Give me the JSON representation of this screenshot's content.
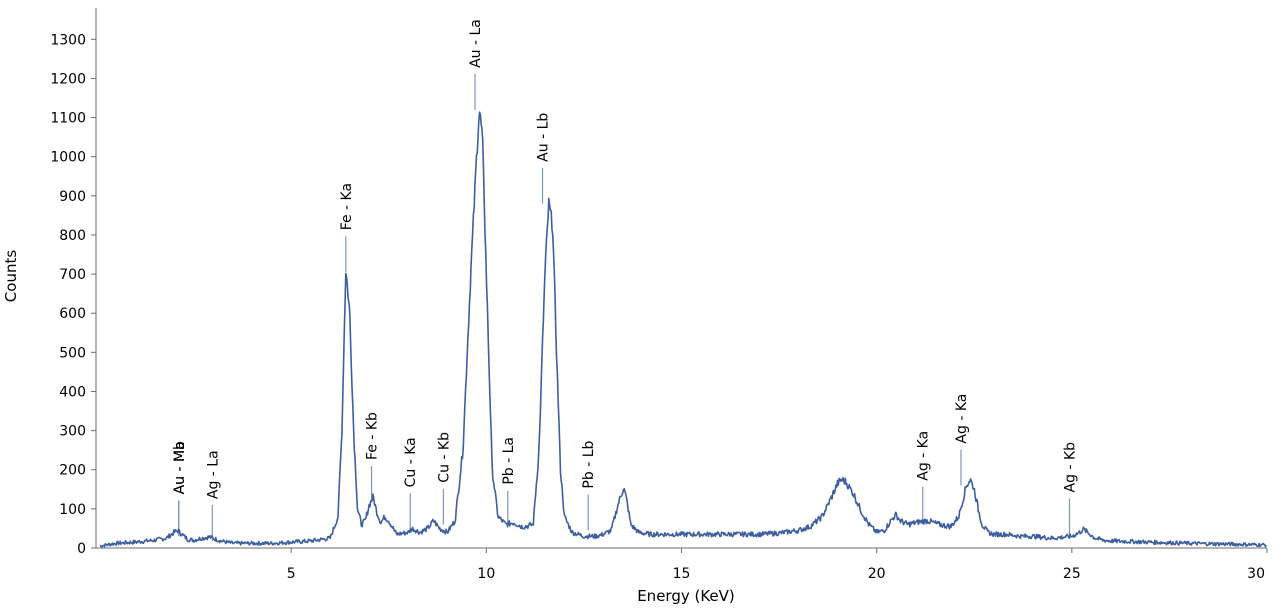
{
  "chart_data": {
    "type": "line",
    "xlabel": "Energy (KeV)",
    "ylabel": "Counts",
    "xlim": [
      0,
      30
    ],
    "ylim": [
      0,
      1380
    ],
    "xticks": [
      5,
      10,
      15,
      20,
      25,
      30
    ],
    "yticks": [
      0,
      100,
      200,
      300,
      400,
      500,
      600,
      700,
      800,
      900,
      1000,
      1100,
      1200,
      1300
    ],
    "grid": false,
    "line_color": "#3d5f9f",
    "marker_color": "#7f93bd",
    "series": [
      {
        "x": [
          0.1,
          0.5,
          1.0,
          1.5,
          1.8,
          2.0,
          2.1,
          2.2,
          2.35,
          2.5,
          2.7,
          2.9,
          3.0,
          3.2,
          3.5,
          4.0,
          4.5,
          5.0,
          5.5,
          6.0,
          6.2,
          6.3,
          6.4,
          6.5,
          6.6,
          6.7,
          6.8,
          6.9,
          7.0,
          7.1,
          7.2,
          7.3,
          7.4,
          7.5,
          7.7,
          8.0,
          8.1,
          8.3,
          8.5,
          8.65,
          8.8,
          9.0,
          9.2,
          9.4,
          9.6,
          9.75,
          9.82,
          9.9,
          10.0,
          10.15,
          10.3,
          10.5,
          10.7,
          10.9,
          11.0,
          11.2,
          11.35,
          11.5,
          11.6,
          11.7,
          11.8,
          11.9,
          12.0,
          12.2,
          12.5,
          12.8,
          13.0,
          13.2,
          13.4,
          13.52,
          13.6,
          13.7,
          13.9,
          14.2,
          15.0,
          16.0,
          17.0,
          17.5,
          18.0,
          18.3,
          18.6,
          18.8,
          19.0,
          19.1,
          19.2,
          19.4,
          19.6,
          19.8,
          20.0,
          20.2,
          20.4,
          20.5,
          20.6,
          20.8,
          21.0,
          21.3,
          21.6,
          21.9,
          22.1,
          22.3,
          22.4,
          22.5,
          22.6,
          22.7,
          22.85,
          23.0,
          23.3,
          23.7,
          24.0,
          24.5,
          25.0,
          25.2,
          25.3,
          25.4,
          25.6,
          25.8,
          26.0,
          27.0,
          28.0,
          29.0,
          30.0
        ],
        "values": [
          5,
          12,
          15,
          20,
          25,
          40,
          45,
          35,
          22,
          20,
          25,
          28,
          25,
          18,
          12,
          12,
          12,
          15,
          18,
          25,
          80,
          300,
          715,
          600,
          300,
          100,
          60,
          70,
          110,
          130,
          90,
          65,
          80,
          70,
          35,
          40,
          50,
          40,
          50,
          70,
          50,
          40,
          70,
          250,
          700,
          1000,
          1120,
          1050,
          700,
          200,
          80,
          60,
          65,
          55,
          55,
          60,
          250,
          700,
          880,
          820,
          500,
          200,
          80,
          40,
          30,
          30,
          35,
          45,
          120,
          155,
          120,
          60,
          40,
          35,
          35,
          35,
          35,
          38,
          45,
          55,
          80,
          120,
          165,
          175,
          170,
          140,
          95,
          60,
          40,
          45,
          75,
          85,
          70,
          60,
          65,
          70,
          60,
          55,
          80,
          160,
          175,
          150,
          100,
          60,
          40,
          35,
          35,
          30,
          30,
          25,
          30,
          40,
          48,
          40,
          25,
          20,
          18,
          15,
          12,
          10,
          8
        ]
      }
    ],
    "annotations": [
      {
        "text": "Au - Ma",
        "x": 2.12,
        "y": 50
      },
      {
        "text": "Au - Mb",
        "x": 2.12,
        "y": 50
      },
      {
        "text": "Ag - La",
        "x": 2.98,
        "y": 38
      },
      {
        "text": "Fe - Ka",
        "x": 6.4,
        "y": 725
      },
      {
        "text": "Fe - Kb",
        "x": 7.06,
        "y": 138
      },
      {
        "text": "Cu - Ka",
        "x": 8.05,
        "y": 68
      },
      {
        "text": "Cu - Kb",
        "x": 8.9,
        "y": 80
      },
      {
        "text": "Au - La",
        "x": 9.71,
        "y": 1140
      },
      {
        "text": "Pb - La",
        "x": 10.55,
        "y": 75
      },
      {
        "text": "Au - Lb",
        "x": 11.44,
        "y": 900
      },
      {
        "text": "Pb - Lb",
        "x": 12.61,
        "y": 65
      },
      {
        "text": "Ag - Ka",
        "x": 21.18,
        "y": 85
      },
      {
        "text": "Ag - Ka",
        "x": 22.16,
        "y": 180
      },
      {
        "text": "Ag - Kb",
        "x": 24.94,
        "y": 55
      }
    ]
  }
}
